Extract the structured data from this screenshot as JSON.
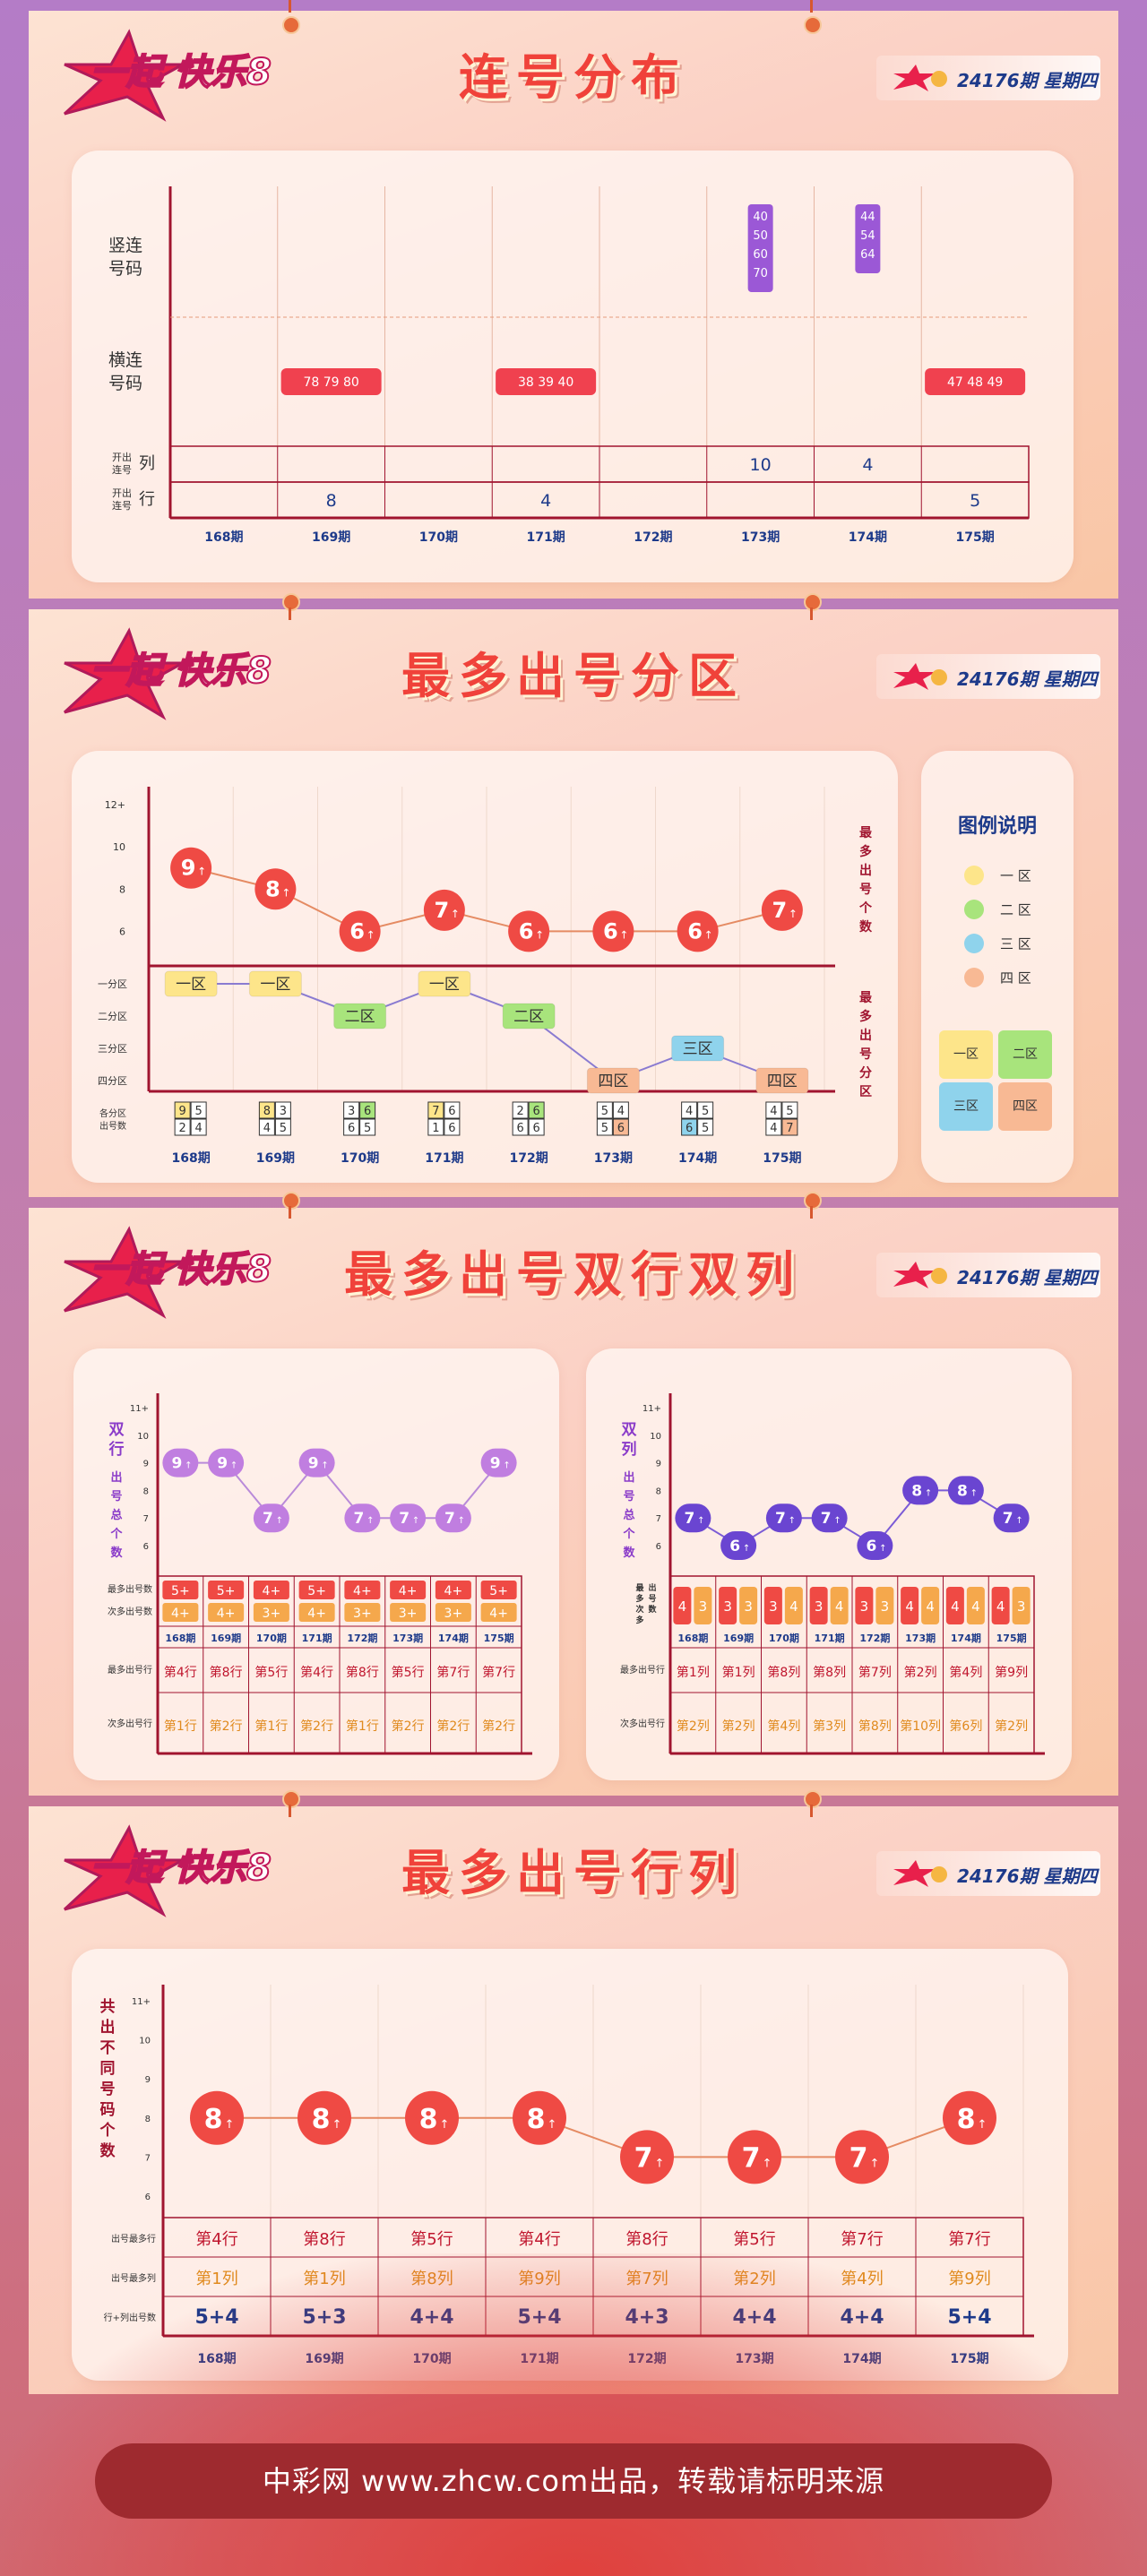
{
  "header": {
    "logo_text": "一起 快乐8",
    "issue": "24176期",
    "weekday": "星期四"
  },
  "footer": "中彩网 www.zhcw.com出品，转载请标明来源",
  "sections": [
    {
      "title": "连号分布"
    },
    {
      "title": "最多出号分区"
    },
    {
      "title": "最多出号双行双列"
    },
    {
      "title": "最多出号行列"
    }
  ],
  "periods": [
    "168期",
    "169期",
    "170期",
    "171期",
    "172期",
    "173期",
    "174期",
    "175期"
  ],
  "legend": {
    "title": "图例说明",
    "items": [
      {
        "label": "一 区",
        "color": "#fde58a"
      },
      {
        "label": "二 区",
        "color": "#a8e47c"
      },
      {
        "label": "三 区",
        "color": "#8fd3ec"
      },
      {
        "label": "四 区",
        "color": "#f8b994"
      }
    ],
    "quad": [
      "一区",
      "二区",
      "三区",
      "四区"
    ]
  },
  "chart_data": [
    {
      "type": "table",
      "title": "连号分布",
      "row_labels": [
        "竖连号码",
        "横连号码",
        "开出连号 列",
        "开出连号 行"
      ],
      "categories": [
        "168期",
        "169期",
        "170期",
        "171期",
        "172期",
        "173期",
        "174期",
        "175期"
      ],
      "vertical_consecutive": [
        null,
        null,
        null,
        null,
        null,
        [
          "40",
          "50",
          "60",
          "70"
        ],
        [
          "44",
          "54",
          "64"
        ],
        null
      ],
      "horizontal_consecutive": [
        null,
        "78 79 80",
        null,
        "38 39 40",
        null,
        null,
        null,
        "47 48 49"
      ],
      "columns_count": [
        null,
        null,
        null,
        null,
        null,
        10,
        4,
        null
      ],
      "rows_count": [
        null,
        8,
        null,
        4,
        null,
        null,
        null,
        5
      ]
    },
    {
      "type": "line",
      "title": "最多出号分区",
      "categories": [
        "168期",
        "169期",
        "170期",
        "171期",
        "172期",
        "173期",
        "174期",
        "175期"
      ],
      "upper": {
        "ylabel": "最多出号个数",
        "yticks": [
          "12+",
          "10",
          "8",
          "6"
        ],
        "ylim": [
          5,
          12
        ],
        "values": [
          9,
          8,
          6,
          7,
          6,
          6,
          6,
          7
        ],
        "value_suffix": "↑"
      },
      "lower": {
        "ylabel": "最多出号分区",
        "ylevels": [
          "一分区",
          "二分区",
          "三分区",
          "四分区"
        ],
        "zones": [
          "一区",
          "一区",
          "二区",
          "一区",
          "二区",
          "四区",
          "三区",
          "四区"
        ],
        "zone_level": [
          1,
          1,
          2,
          1,
          2,
          4,
          3,
          4
        ],
        "zone_counts_label": "各分区出号数",
        "zone_counts": [
          [
            "9",
            "5",
            "2",
            "4"
          ],
          [
            "8",
            "3",
            "4",
            "5"
          ],
          [
            "3",
            "6",
            "6",
            "5"
          ],
          [
            "7",
            "6",
            "1",
            "6"
          ],
          [
            "2",
            "6",
            "6",
            "6"
          ],
          [
            "5",
            "4",
            "5",
            "6"
          ],
          [
            "4",
            "5",
            "6",
            "5"
          ],
          [
            "4",
            "5",
            "4",
            "7"
          ]
        ],
        "zone_count_highlight": [
          0,
          0,
          1,
          0,
          1,
          3,
          2,
          3
        ]
      }
    },
    {
      "type": "line",
      "title": "双行",
      "ylabel": "双行出号总个数",
      "yticks": [
        "11+",
        "10",
        "9",
        "8",
        "7",
        "6"
      ],
      "ylim": [
        6,
        11
      ],
      "categories": [
        "168期",
        "169期",
        "170期",
        "171期",
        "172期",
        "173期",
        "174期",
        "175期"
      ],
      "values": [
        9,
        9,
        7,
        9,
        7,
        7,
        7,
        9
      ],
      "value_suffix": "↑",
      "table_labels": [
        "最多出号数",
        "次多出号数",
        "最多出号行",
        "次多出号行"
      ],
      "most_count": [
        "5",
        "5",
        "4",
        "5",
        "4",
        "4",
        "4",
        "5"
      ],
      "second_count": [
        "4",
        "4",
        "3",
        "4",
        "3",
        "3",
        "3",
        "4"
      ],
      "most_row": [
        "第4行",
        "第8行",
        "第5行",
        "第4行",
        "第8行",
        "第5行",
        "第7行",
        "第7行"
      ],
      "second_row": [
        "第1行",
        "第2行",
        "第1行",
        "第2行",
        "第1行",
        "第2行",
        "第2行",
        "第2行"
      ]
    },
    {
      "type": "line",
      "title": "双列",
      "ylabel": "双列出号总个数",
      "yticks": [
        "11+",
        "10",
        "9",
        "8",
        "7",
        "6"
      ],
      "ylim": [
        6,
        11
      ],
      "categories": [
        "168期",
        "169期",
        "170期",
        "171期",
        "172期",
        "173期",
        "174期",
        "175期"
      ],
      "values": [
        7,
        6,
        7,
        7,
        6,
        8,
        8,
        7
      ],
      "value_suffix": "↑",
      "table_labels": [
        "最多次多出号数",
        "最多出号行",
        "次多出号行"
      ],
      "count_pairs": [
        [
          "4",
          "3"
        ],
        [
          "3",
          "3"
        ],
        [
          "3",
          "4"
        ],
        [
          "3",
          "4"
        ],
        [
          "3",
          "3"
        ],
        [
          "4",
          "4"
        ],
        [
          "4",
          "4"
        ],
        [
          "4",
          "3"
        ]
      ],
      "most_col": [
        "第1列",
        "第1列",
        "第8列",
        "第8列",
        "第7列",
        "第2列",
        "第4列",
        "第9列"
      ],
      "second_col": [
        "第2列",
        "第2列",
        "第4列",
        "第3列",
        "第8列",
        "第10列",
        "第6列",
        "第2列"
      ]
    },
    {
      "type": "line",
      "title": "最多出号行列",
      "ylabel": "共出不同号码个数",
      "yticks": [
        "11+",
        "10",
        "9",
        "8",
        "7",
        "6"
      ],
      "ylim": [
        6,
        11
      ],
      "categories": [
        "168期",
        "169期",
        "170期",
        "171期",
        "172期",
        "173期",
        "174期",
        "175期"
      ],
      "values": [
        8,
        8,
        8,
        8,
        7,
        7,
        7,
        8
      ],
      "value_suffix": "↑",
      "table_labels": [
        "出号最多行",
        "出号最多列",
        "行+列出号数"
      ],
      "most_row": [
        "第4行",
        "第8行",
        "第5行",
        "第4行",
        "第8行",
        "第5行",
        "第7行",
        "第7行"
      ],
      "most_col": [
        "第1列",
        "第1列",
        "第8列",
        "第9列",
        "第7列",
        "第2列",
        "第4列",
        "第9列"
      ],
      "row_plus_col": [
        "5+4",
        "5+3",
        "4+4",
        "5+4",
        "4+3",
        "4+4",
        "4+4",
        "5+4"
      ]
    }
  ]
}
